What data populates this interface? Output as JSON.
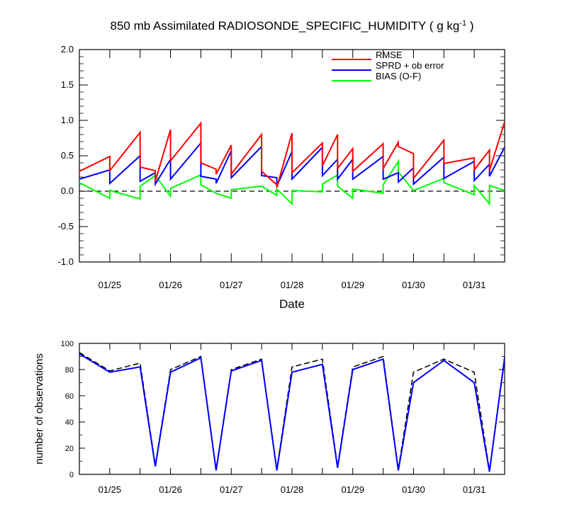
{
  "chart_data": [
    {
      "type": "line",
      "title": "850 mb Assimilated RADIOSONDE_SPECIFIC_HUMIDITY ( g kg",
      "title_sup": "-1",
      "title_end": " )",
      "xlabel": "Date",
      "ylabel": "",
      "ylim": [
        -1.0,
        2.0
      ],
      "yticks": [
        "2.0",
        "1.5",
        "1.0",
        "0.5",
        "0.0",
        "-0.5",
        "-1.0"
      ],
      "xlim": [
        24.5,
        31.5
      ],
      "xticks": [
        {
          "x": 25,
          "label": "01/25"
        },
        {
          "x": 26,
          "label": "01/26"
        },
        {
          "x": 27,
          "label": "01/27"
        },
        {
          "x": 28,
          "label": "01/28"
        },
        {
          "x": 29,
          "label": "01/29"
        },
        {
          "x": 30,
          "label": "01/30"
        },
        {
          "x": 31,
          "label": "01/31"
        }
      ],
      "zero_line": true,
      "legend": "top-right",
      "series": [
        {
          "name": "RMSE",
          "color": "#ff0000",
          "segments": [
            [
              [
                24.5,
                0.28
              ],
              [
                25.0,
                0.49
              ]
            ],
            [
              [
                25.0,
                0.29
              ],
              [
                25.5,
                0.83
              ]
            ],
            [
              [
                25.5,
                0.34
              ],
              [
                25.75,
                0.29
              ]
            ],
            [
              [
                25.75,
                0.14
              ],
              [
                26.0,
                0.87
              ]
            ],
            [
              [
                26.0,
                0.43
              ],
              [
                26.5,
                0.96
              ]
            ],
            [
              [
                26.5,
                0.4
              ],
              [
                26.75,
                0.31
              ]
            ],
            [
              [
                26.75,
                0.24
              ],
              [
                27.0,
                0.65
              ]
            ],
            [
              [
                27.0,
                0.24
              ],
              [
                27.5,
                0.8
              ]
            ],
            [
              [
                27.5,
                0.28
              ],
              [
                27.75,
                0.09
              ]
            ],
            [
              [
                27.75,
                0.05
              ],
              [
                28.0,
                0.82
              ]
            ],
            [
              [
                28.0,
                0.26
              ],
              [
                28.5,
                0.68
              ]
            ],
            [
              [
                28.5,
                0.36
              ],
              [
                28.75,
                0.8
              ]
            ],
            [
              [
                28.75,
                0.32
              ],
              [
                29.0,
                0.6
              ]
            ],
            [
              [
                29.0,
                0.28
              ],
              [
                29.5,
                0.67
              ]
            ],
            [
              [
                29.5,
                0.32
              ],
              [
                29.75,
                0.69
              ]
            ],
            [
              [
                29.75,
                0.63
              ],
              [
                30.0,
                0.53
              ]
            ],
            [
              [
                30.0,
                0.18
              ],
              [
                30.5,
                0.72
              ]
            ],
            [
              [
                30.5,
                0.39
              ],
              [
                31.0,
                0.47
              ]
            ],
            [
              [
                31.0,
                0.3
              ],
              [
                31.25,
                0.58
              ]
            ],
            [
              [
                31.25,
                0.29
              ],
              [
                31.5,
                0.98
              ]
            ]
          ]
        },
        {
          "name": "SPRD + ob error",
          "color": "#0000ff",
          "segments": [
            [
              [
                24.5,
                0.17
              ],
              [
                25.0,
                0.3
              ]
            ],
            [
              [
                25.0,
                0.11
              ],
              [
                25.5,
                0.5
              ]
            ],
            [
              [
                25.5,
                0.14
              ],
              [
                25.75,
                0.26
              ]
            ],
            [
              [
                25.75,
                0.1
              ],
              [
                26.0,
                0.45
              ]
            ],
            [
              [
                26.0,
                0.17
              ],
              [
                26.5,
                0.68
              ]
            ],
            [
              [
                26.5,
                0.21
              ],
              [
                26.75,
                0.17
              ]
            ],
            [
              [
                26.75,
                0.11
              ],
              [
                27.0,
                0.57
              ]
            ],
            [
              [
                27.0,
                0.19
              ],
              [
                27.5,
                0.63
              ]
            ],
            [
              [
                27.5,
                0.22
              ],
              [
                27.75,
                0.19
              ]
            ],
            [
              [
                27.75,
                0.07
              ],
              [
                28.0,
                0.56
              ]
            ],
            [
              [
                28.0,
                0.17
              ],
              [
                28.5,
                0.62
              ]
            ],
            [
              [
                28.5,
                0.22
              ],
              [
                28.75,
                0.45
              ]
            ],
            [
              [
                28.75,
                0.17
              ],
              [
                29.0,
                0.45
              ]
            ],
            [
              [
                29.0,
                0.17
              ],
              [
                29.5,
                0.49
              ]
            ],
            [
              [
                29.5,
                0.17
              ],
              [
                29.75,
                0.26
              ]
            ],
            [
              [
                29.75,
                0.13
              ],
              [
                30.0,
                0.33
              ]
            ],
            [
              [
                30.0,
                0.1
              ],
              [
                30.5,
                0.48
              ]
            ],
            [
              [
                30.5,
                0.18
              ],
              [
                31.0,
                0.42
              ]
            ],
            [
              [
                31.0,
                0.15
              ],
              [
                31.25,
                0.38
              ]
            ],
            [
              [
                31.25,
                0.21
              ],
              [
                31.5,
                0.62
              ]
            ]
          ]
        },
        {
          "name": "BIAS (O-F)",
          "color": "#00ff00",
          "segments": [
            [
              [
                24.5,
                0.12
              ],
              [
                25.0,
                -0.1
              ]
            ],
            [
              [
                25.0,
                0.01
              ],
              [
                25.5,
                -0.11
              ]
            ],
            [
              [
                25.5,
                0.07
              ],
              [
                25.75,
                0.22
              ]
            ],
            [
              [
                25.75,
                0.22
              ],
              [
                26.0,
                -0.07
              ]
            ],
            [
              [
                26.0,
                0.04
              ],
              [
                26.5,
                0.23
              ]
            ],
            [
              [
                26.5,
                0.09
              ],
              [
                26.75,
                -0.03
              ]
            ],
            [
              [
                26.75,
                -0.03
              ],
              [
                27.0,
                -0.1
              ]
            ],
            [
              [
                27.0,
                0.02
              ],
              [
                27.5,
                0.07
              ]
            ],
            [
              [
                27.5,
                0.07
              ],
              [
                27.75,
                -0.06
              ]
            ],
            [
              [
                27.75,
                0.03
              ],
              [
                28.0,
                -0.18
              ]
            ],
            [
              [
                28.0,
                0.01
              ],
              [
                28.5,
                -0.01
              ]
            ],
            [
              [
                28.5,
                0.1
              ],
              [
                28.75,
                0.23
              ]
            ],
            [
              [
                28.75,
                0.07
              ],
              [
                29.0,
                -0.1
              ]
            ],
            [
              [
                29.0,
                0.03
              ],
              [
                29.5,
                -0.03
              ]
            ],
            [
              [
                29.5,
                0.09
              ],
              [
                29.75,
                0.42
              ]
            ],
            [
              [
                29.75,
                0.27
              ],
              [
                30.0,
                0.01
              ]
            ],
            [
              [
                30.0,
                0.01
              ],
              [
                30.5,
                0.18
              ]
            ],
            [
              [
                30.5,
                0.12
              ],
              [
                31.0,
                -0.05
              ]
            ],
            [
              [
                31.0,
                0.08
              ],
              [
                31.25,
                -0.18
              ]
            ],
            [
              [
                31.25,
                0.08
              ],
              [
                31.5,
                0.01
              ]
            ]
          ]
        }
      ]
    },
    {
      "type": "line",
      "title": "",
      "xlabel": "",
      "ylabel": "number of observations",
      "ylim": [
        0,
        100
      ],
      "yticks": [
        "100",
        "80",
        "60",
        "40",
        "20",
        "0"
      ],
      "xlim": [
        24.5,
        31.5
      ],
      "xticks": [
        {
          "x": 25,
          "label": "01/25"
        },
        {
          "x": 26,
          "label": "01/26"
        },
        {
          "x": 27,
          "label": "01/27"
        },
        {
          "x": 28,
          "label": "01/28"
        },
        {
          "x": 29,
          "label": "01/29"
        },
        {
          "x": 30,
          "label": "01/30"
        },
        {
          "x": 31,
          "label": "01/31"
        }
      ],
      "series": [
        {
          "name": "",
          "style": "dashed",
          "color": "#000000",
          "points": [
            [
              24.5,
              93
            ],
            [
              25.0,
              79
            ],
            [
              25.5,
              85
            ],
            [
              25.75,
              7
            ],
            [
              26.0,
              80
            ],
            [
              26.5,
              90
            ],
            [
              26.75,
              4
            ],
            [
              27.0,
              80
            ],
            [
              27.5,
              88
            ],
            [
              27.75,
              4
            ],
            [
              28.0,
              82
            ],
            [
              28.5,
              88
            ],
            [
              28.75,
              6
            ],
            [
              29.0,
              82
            ],
            [
              29.5,
              90
            ],
            [
              29.75,
              4
            ],
            [
              30.0,
              78
            ],
            [
              30.5,
              88
            ],
            [
              31.0,
              78
            ],
            [
              31.25,
              3
            ],
            [
              31.5,
              90
            ]
          ]
        },
        {
          "name": "",
          "style": "solid",
          "color": "#0000ff",
          "points": [
            [
              24.5,
              92
            ],
            [
              25.0,
              78
            ],
            [
              25.5,
              82
            ],
            [
              25.75,
              6
            ],
            [
              26.0,
              78
            ],
            [
              26.5,
              89
            ],
            [
              26.75,
              3
            ],
            [
              27.0,
              79
            ],
            [
              27.5,
              87
            ],
            [
              27.75,
              3
            ],
            [
              28.0,
              78
            ],
            [
              28.5,
              84
            ],
            [
              28.75,
              5
            ],
            [
              29.0,
              80
            ],
            [
              29.5,
              88
            ],
            [
              29.75,
              3
            ],
            [
              30.0,
              70
            ],
            [
              30.5,
              87
            ],
            [
              31.0,
              70
            ],
            [
              31.25,
              2
            ],
            [
              31.5,
              89
            ]
          ]
        }
      ]
    }
  ]
}
